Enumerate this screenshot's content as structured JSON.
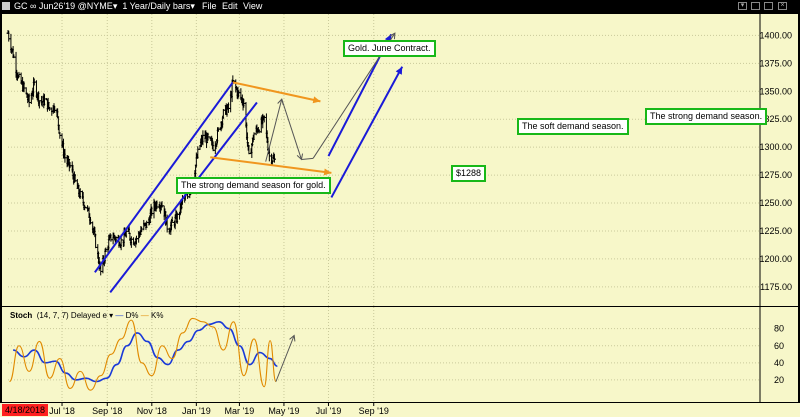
{
  "window": {
    "title": "GC ∞ Jun26'19 @NYME",
    "timeframe": "1 Year/Daily bars",
    "menus": [
      "File",
      "Edit",
      "View"
    ]
  },
  "annotations": {
    "gold_contract": "Gold. June Contract.",
    "strong_demand_left": "The strong demand season for gold.",
    "soft_demand": "The soft demand season.",
    "strong_demand_right": "The strong demand season.",
    "price_tag": "$1288"
  },
  "stoch_header": {
    "label": "Stoch",
    "params": "(14, 7, 7) Delayed e",
    "d_legend": "D%",
    "k_legend": "K%"
  },
  "date_axis": {
    "first_date": "4/18/2018",
    "labels": [
      "Jul '18",
      "Sep '18",
      "Nov '18",
      "Jan '19",
      "Mar '19",
      "May '19",
      "Jul '19",
      "Sep '19"
    ]
  },
  "colors": {
    "background": "#f7f7c9",
    "frame": "#000000",
    "channel_blue": "#1a1ad8",
    "channel_orange": "#f0961e",
    "annotation_border": "#18b818",
    "stoch_d": "#1a3ad8",
    "stoch_k": "#e08a00",
    "first_date_bg": "#ff2020"
  },
  "chart_data": [
    {
      "type": "candlestick",
      "title": "Gold. June Contract.",
      "x_axis_labels": [
        "Jul '18",
        "Sep '18",
        "Nov '18",
        "Jan '19",
        "Mar '19",
        "May '19",
        "Jul '19",
        "Sep '19"
      ],
      "y_axis": {
        "ticks": [
          1175,
          1200,
          1225,
          1250,
          1275,
          1300,
          1325,
          1350,
          1375,
          1400
        ],
        "ylim": [
          1165,
          1412
        ],
        "position": "right"
      },
      "grid": true,
      "close_path": {
        "dates": [
          "2018-04-18",
          "2018-04-25",
          "2018-05-02",
          "2018-05-10",
          "2018-05-17",
          "2018-05-24",
          "2018-06-01",
          "2018-06-08",
          "2018-06-15",
          "2018-06-22",
          "2018-06-29",
          "2018-07-06",
          "2018-07-13",
          "2018-07-20",
          "2018-07-27",
          "2018-08-03",
          "2018-08-10",
          "2018-08-16",
          "2018-08-23",
          "2018-08-31",
          "2018-09-07",
          "2018-09-14",
          "2018-09-21",
          "2018-09-28",
          "2018-10-05",
          "2018-10-12",
          "2018-10-19",
          "2018-10-26",
          "2018-11-02",
          "2018-11-09",
          "2018-11-16",
          "2018-11-23",
          "2018-11-30",
          "2018-12-07",
          "2018-12-14",
          "2018-12-21",
          "2018-12-28",
          "2019-01-04",
          "2019-01-11",
          "2019-01-18",
          "2019-01-25",
          "2019-02-01",
          "2019-02-08",
          "2019-02-15",
          "2019-02-20",
          "2019-02-28",
          "2019-03-07",
          "2019-03-14",
          "2019-03-21",
          "2019-03-28",
          "2019-04-04",
          "2019-04-11",
          "2019-04-18"
        ],
        "close": [
          1402,
          1383,
          1362,
          1352,
          1340,
          1356,
          1340,
          1342,
          1333,
          1338,
          1308,
          1288,
          1282,
          1266,
          1255,
          1246,
          1235,
          1214,
          1188,
          1210,
          1221,
          1218,
          1215,
          1225,
          1216,
          1219,
          1228,
          1231,
          1245,
          1251,
          1248,
          1226,
          1232,
          1238,
          1255,
          1256,
          1273,
          1298,
          1310,
          1306,
          1300,
          1316,
          1332,
          1335,
          1358,
          1347,
          1340,
          1290,
          1312,
          1318,
          1325,
          1292,
          1288
        ]
      },
      "annotations": [
        {
          "text": "Gold. June Contract."
        },
        {
          "text": "The strong demand season for gold."
        },
        {
          "text": "The soft demand season."
        },
        {
          "text": "The strong demand season."
        },
        {
          "text": "$1288",
          "value": 1288
        }
      ],
      "trendlines": [
        {
          "color": "blue",
          "from": {
            "date": "2018-08-15",
            "price": 1188
          },
          "to": {
            "date": "2019-02-20",
            "price": 1358
          }
        },
        {
          "color": "blue",
          "from": {
            "date": "2018-09-05",
            "price": 1170
          },
          "to": {
            "date": "2019-03-25",
            "price": 1340
          }
        },
        {
          "color": "orange",
          "from": {
            "date": "2019-02-20",
            "price": 1358
          },
          "to": {
            "date": "2019-06-20",
            "price": 1341
          }
        },
        {
          "color": "orange",
          "from": {
            "date": "2019-01-20",
            "price": 1291
          },
          "to": {
            "date": "2019-07-05",
            "price": 1277
          }
        },
        {
          "color": "blue",
          "from": {
            "date": "2019-07-01",
            "price": 1292
          },
          "to": {
            "date": "2019-09-25",
            "price": 1401
          }
        },
        {
          "color": "blue",
          "from": {
            "date": "2019-07-05",
            "price": 1255
          },
          "to": {
            "date": "2019-10-10",
            "price": 1372
          }
        }
      ],
      "projection": {
        "dates": [
          "2019-04-06",
          "2019-04-28",
          "2019-05-25",
          "2019-06-10",
          "2019-09-30"
        ],
        "prices": [
          1287,
          1343,
          1289,
          1290,
          1402
        ]
      }
    },
    {
      "type": "line",
      "title": "Stoch (14, 7, 7) Delayed e",
      "y_axis": {
        "ticks": [
          20,
          40,
          60,
          80
        ],
        "ylim": [
          0,
          96
        ]
      },
      "series": [
        {
          "name": "D%",
          "color": "#1a3ad8",
          "dates": [
            "2018-04-25",
            "2018-05-10",
            "2018-05-24",
            "2018-06-08",
            "2018-06-22",
            "2018-07-06",
            "2018-07-20",
            "2018-08-03",
            "2018-08-17",
            "2018-08-31",
            "2018-09-14",
            "2018-09-28",
            "2018-10-12",
            "2018-10-26",
            "2018-11-09",
            "2018-11-23",
            "2018-12-07",
            "2018-12-21",
            "2019-01-04",
            "2019-01-18",
            "2019-02-01",
            "2019-02-15",
            "2019-03-01",
            "2019-03-15",
            "2019-03-29",
            "2019-04-12",
            "2019-04-22"
          ],
          "values": [
            55,
            47,
            55,
            40,
            42,
            28,
            20,
            22,
            18,
            22,
            38,
            60,
            75,
            65,
            46,
            38,
            55,
            65,
            78,
            85,
            88,
            80,
            60,
            38,
            52,
            45,
            36
          ]
        },
        {
          "name": "K%",
          "color": "#e08a00",
          "dates": [
            "2018-04-20",
            "2018-05-03",
            "2018-05-17",
            "2018-05-31",
            "2018-06-14",
            "2018-06-28",
            "2018-07-12",
            "2018-07-26",
            "2018-08-09",
            "2018-08-23",
            "2018-09-06",
            "2018-09-20",
            "2018-10-04",
            "2018-10-18",
            "2018-11-01",
            "2018-11-15",
            "2018-11-29",
            "2018-12-13",
            "2018-12-27",
            "2019-01-10",
            "2019-01-24",
            "2019-02-07",
            "2019-02-21",
            "2019-03-07",
            "2019-03-21",
            "2019-04-04",
            "2019-04-12",
            "2019-04-20"
          ],
          "values": [
            18,
            60,
            30,
            65,
            22,
            45,
            10,
            30,
            8,
            25,
            50,
            68,
            90,
            40,
            25,
            60,
            45,
            75,
            92,
            88,
            82,
            55,
            88,
            25,
            68,
            12,
            66,
            18
          ]
        }
      ]
    }
  ]
}
